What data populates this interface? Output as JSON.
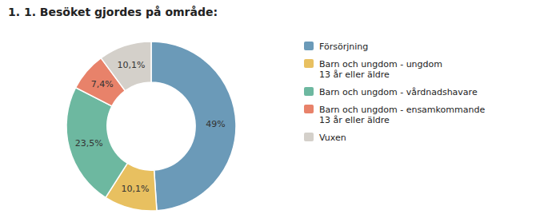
{
  "chart_data": {
    "type": "donut",
    "title": "1. 1. Besöket gjordes på område:",
    "categories": [
      "Försörjning",
      "Barn och ungdom - ungdom\n13 år eller äldre",
      "Barn och ungdom - vårdnadshavare",
      "Barn och ungdom - ensamkommande\n13 år eller äldre",
      "Vuxen"
    ],
    "values": [
      49.0,
      10.1,
      23.5,
      7.4,
      10.1
    ],
    "value_labels": [
      "49%",
      "10,1%",
      "23,5%",
      "7,4%",
      "10,1%"
    ],
    "colors": [
      "#6b9ab8",
      "#e8c060",
      "#6db8a0",
      "#e8826a",
      "#d4d0ca"
    ],
    "data_labels": true,
    "legend": "right"
  }
}
